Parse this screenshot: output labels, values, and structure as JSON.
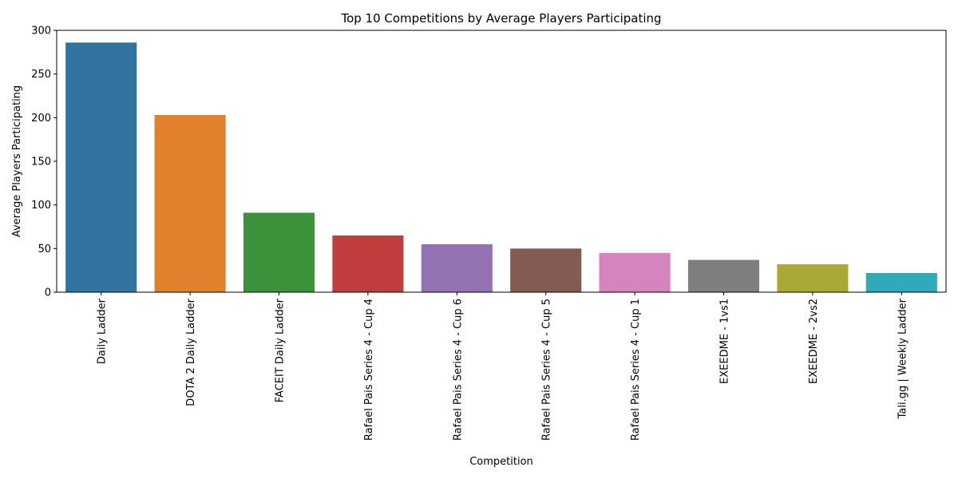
{
  "chart_data": {
    "type": "bar",
    "title": "Top 10 Competitions by Average Players Participating",
    "xlabel": "Competition",
    "ylabel": "Average Players Participating",
    "ylim": [
      0,
      300
    ],
    "yticks": [
      0,
      50,
      100,
      150,
      200,
      250,
      300
    ],
    "grid": false,
    "legend": "none",
    "categories": [
      "Daily Ladder",
      "DOTA 2 Daily Ladder",
      "FACEIT Daily Ladder",
      "Rafael Pais Series 4 - Cup 4",
      "Rafael Pais Series 4 - Cup 6",
      "Rafael Pais Series 4 - Cup 5",
      "Rafael Pais Series 4 - Cup 1",
      "EXEEDME - 1vs1",
      "EXEEDME - 2vs2",
      "Tali.gg | Weekly Ladder"
    ],
    "values": [
      286,
      203,
      91,
      65,
      55,
      50,
      45,
      37,
      32,
      22
    ],
    "colors": [
      "#3274a1",
      "#e1812c",
      "#3a923a",
      "#c03d3e",
      "#9372b2",
      "#845b53",
      "#d684bd",
      "#7f7f7f",
      "#a9aa35",
      "#2eaab8"
    ]
  }
}
